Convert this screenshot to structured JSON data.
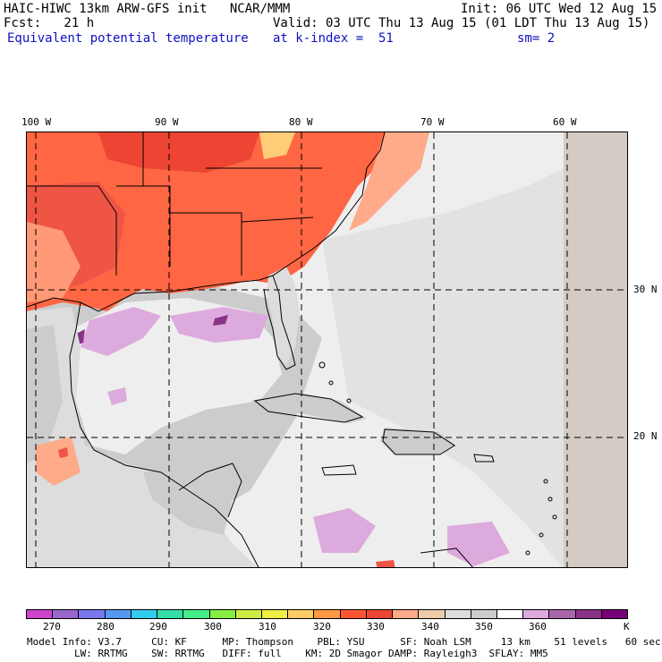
{
  "header": {
    "model": "HAIC-HIWC 13km ARW-GFS init   NCAR/MMM",
    "init": "Init: 06 UTC Wed 12 Aug 15",
    "fcst": "Fcst:   21 h",
    "valid": "Valid: 03 UTC Thu 13 Aug 15 (01 LDT Thu 13 Aug 15)",
    "field": "Equivalent potential temperature",
    "level": "at k-index =  51",
    "smooth": "sm= 2"
  },
  "map": {
    "lon_labels": [
      "100 W",
      "90 W",
      "80 W",
      "70 W",
      "60 W"
    ],
    "lat_labels": [
      "30 N",
      "20 N"
    ],
    "region": "Gulf of Mexico, Caribbean and southeastern United States"
  },
  "colorbar": {
    "colors": [
      "#cc44cc",
      "#9966cc",
      "#7777ee",
      "#5599ee",
      "#33ccee",
      "#33ddaa",
      "#44ee88",
      "#88ee44",
      "#ccee44",
      "#eeee44",
      "#ffcc66",
      "#ff9944",
      "#ff5533",
      "#ee4433",
      "#ffaa88",
      "#eeccaa",
      "#dddddd",
      "#cccccc",
      "#ffffff",
      "#ddaadd",
      "#aa66aa",
      "#883388",
      "#770077"
    ],
    "ticks": [
      "270",
      "280",
      "290",
      "300",
      "310",
      "320",
      "330",
      "340",
      "350",
      "360",
      "K"
    ]
  },
  "footer": {
    "line1": "Model Info: V3.7     CU: KF      MP: Thompson    PBL: YSU      SF: Noah LSM     13 km    51 levels   60 sec",
    "line2": "        LW: RRTMG    SW: RRTMG   DIFF: full    KM: 2D Smagor DAMP: Rayleigh3  SFLAY: MM5"
  }
}
